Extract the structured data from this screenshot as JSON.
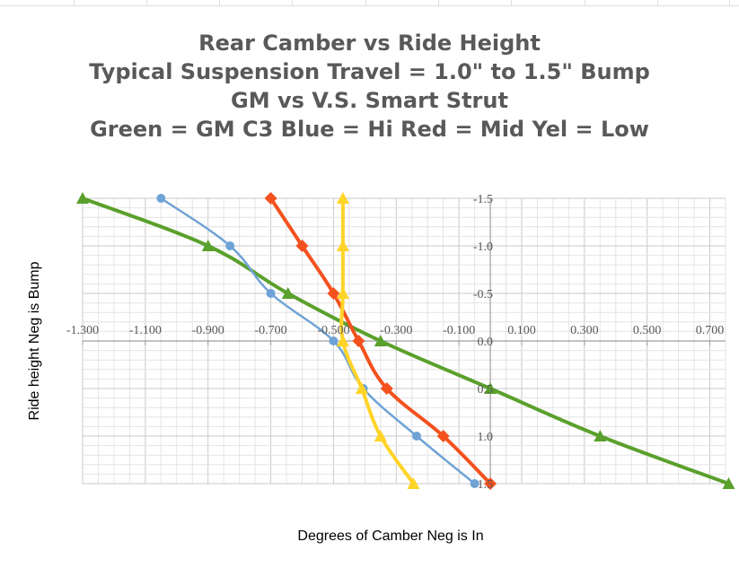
{
  "chart_data": {
    "type": "scatter",
    "title": [
      "Rear  Camber vs Ride Height",
      "Typical Suspension Travel = 1.0\" to 1.5\" Bump",
      "GM vs V.S. Smart Strut",
      "Green = GM C3 Blue = Hi Red = Mid Yel = Low"
    ],
    "xlabel": "Degrees of Camber  Neg is In",
    "ylabel": "Ride height  Neg is Bump",
    "xlim": [
      -1.3,
      0.75
    ],
    "ylim": [
      -1.5,
      1.5
    ],
    "y_reversed": true,
    "x_ticks": [
      "-1.300",
      "-1.100",
      "-0.900",
      "-0.700",
      "-0.500",
      "-0.300",
      "-0.100",
      "0.100",
      "0.300",
      "0.500",
      "0.700"
    ],
    "y_ticks": [
      "-1.5",
      "-1.0",
      "-0.5",
      "0.0",
      "0.5",
      "1.0",
      "1.5"
    ],
    "grid": true,
    "series": [
      {
        "name": "GM C3",
        "color": "#5aa02c",
        "marker": "triangle",
        "x": [
          -1.3,
          -0.9,
          -0.645,
          -0.35,
          0.0,
          0.35,
          0.76
        ],
        "y": [
          -1.5,
          -1.0,
          -0.5,
          0.0,
          0.5,
          1.0,
          1.5
        ]
      },
      {
        "name": "Hi",
        "color": "#6fa3d6",
        "marker": "circle",
        "x": [
          -1.05,
          -0.83,
          -0.7,
          -0.5,
          -0.405,
          -0.235,
          -0.05
        ],
        "y": [
          -1.5,
          -1.0,
          -0.5,
          0.0,
          0.5,
          1.0,
          1.5
        ]
      },
      {
        "name": "Mid",
        "color": "#f4511e",
        "marker": "diamond",
        "x": [
          -0.7,
          -0.6,
          -0.5,
          -0.42,
          -0.33,
          -0.15,
          0.0
        ],
        "y": [
          -1.5,
          -1.0,
          -0.5,
          0.0,
          0.5,
          1.0,
          1.5
        ]
      },
      {
        "name": "Low",
        "color": "#ffd428",
        "marker": "triangle",
        "x": [
          -0.47,
          -0.47,
          -0.47,
          -0.47,
          -0.41,
          -0.35,
          -0.245
        ],
        "y": [
          -1.5,
          -1.0,
          -0.5,
          0.0,
          0.5,
          1.0,
          1.5
        ]
      }
    ]
  }
}
